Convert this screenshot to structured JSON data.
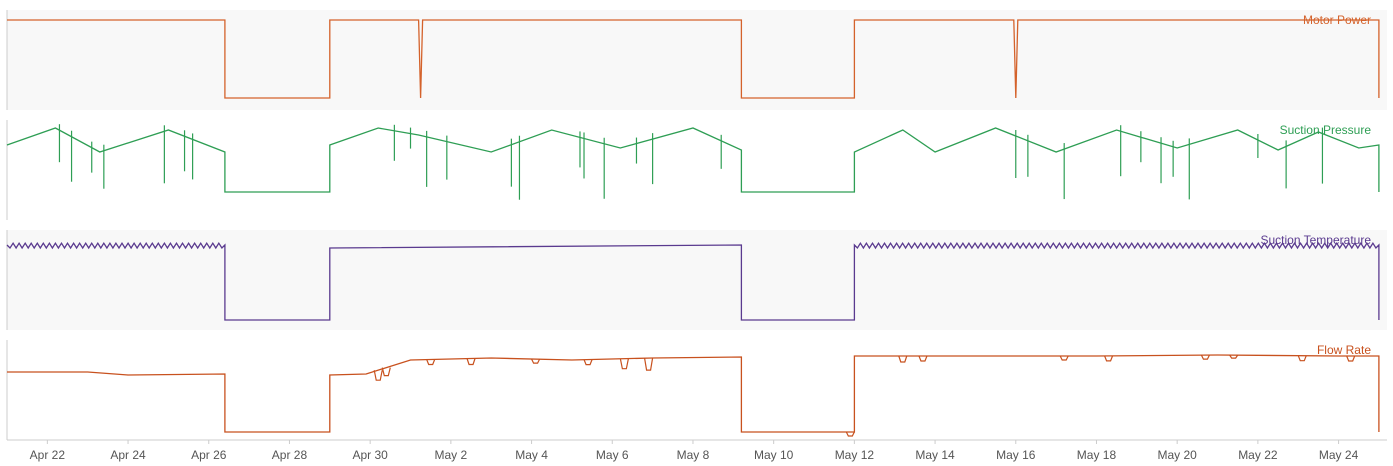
{
  "chart_data": {
    "type": "line",
    "layout_note_free": true,
    "x_axis": {
      "ticks": [
        "Apr 22",
        "Apr 24",
        "Apr 26",
        "Apr 28",
        "Apr 30",
        "May 2",
        "May 4",
        "May 6",
        "May 8",
        "May 10",
        "May 12",
        "May 14",
        "May 16",
        "May 18",
        "May 20",
        "May 22",
        "May 24"
      ],
      "range": [
        "2024-04-21",
        "2024-05-25"
      ]
    },
    "grid": false,
    "legend": "inline labels at top-right of each panel",
    "panels": [
      {
        "name": "Motor Power",
        "color": "#d4622b",
        "background": "#f8f8f8",
        "ylim": [
          0,
          1
        ],
        "x": [
          "Apr 21",
          "Apr 26.4",
          "Apr 26.4",
          "Apr 29",
          "Apr 29",
          "May 1.2",
          "May 1.25",
          "May 1.3",
          "May 9.2",
          "May 9.2",
          "May 12",
          "May 12",
          "May 15.95",
          "May 16",
          "May 16.05",
          "May 25",
          "May 25"
        ],
        "y": [
          0.9,
          0.9,
          0.12,
          0.12,
          0.9,
          0.9,
          0.12,
          0.9,
          0.9,
          0.12,
          0.12,
          0.9,
          0.9,
          0.12,
          0.9,
          0.9,
          0.12
        ]
      },
      {
        "name": "Suction Pressure",
        "color": "#2e9e54",
        "background": "#ffffff",
        "ylim": [
          0,
          1
        ],
        "x": [
          "Apr 21",
          "Apr 22.2",
          "Apr 23.3",
          "Apr 25",
          "Apr 26.4",
          "Apr 26.4",
          "Apr 29",
          "Apr 29",
          "Apr 30.2",
          "May 1.2",
          "May 3",
          "May 4.5",
          "May 6.2",
          "May 8",
          "May 9.2",
          "May 9.2",
          "May 12",
          "May 12",
          "May 13.2",
          "May 14",
          "May 15.5",
          "May 17",
          "May 18.5",
          "May 20",
          "May 21.5",
          "May 22.5",
          "May 23.5",
          "May 24.5",
          "May 25",
          "May 25"
        ],
        "y": [
          0.75,
          0.92,
          0.68,
          0.9,
          0.68,
          0.28,
          0.28,
          0.75,
          0.92,
          0.85,
          0.68,
          0.9,
          0.72,
          0.92,
          0.7,
          0.28,
          0.28,
          0.68,
          0.9,
          0.68,
          0.92,
          0.68,
          0.9,
          0.72,
          0.9,
          0.7,
          0.88,
          0.72,
          0.75,
          0.28
        ],
        "spikes_down": [
          "Apr 22.3",
          "Apr 22.6",
          "Apr 23.1",
          "Apr 23.4",
          "Apr 24.9",
          "Apr 25.4",
          "Apr 25.6",
          "Apr 30.6",
          "Apr 31",
          "May 1.4",
          "May 1.9",
          "May 3.5",
          "May 3.7",
          "May 5.2",
          "May 5.3",
          "May 5.8",
          "May 6.6",
          "May 7",
          "May 8.7",
          "May 16",
          "May 16.3",
          "May 17.2",
          "May 18.6",
          "May 19.1",
          "May 19.6",
          "May 19.9",
          "May 20.3",
          "May 22",
          "May 22.7",
          "May 23.6"
        ],
        "spike_depth": [
          0.32,
          0.45,
          0.25,
          0.38,
          0.52,
          0.35,
          0.4,
          0.3,
          0.15,
          0.5,
          0.38,
          0.42,
          0.58,
          0.3,
          0.4,
          0.55,
          0.2,
          0.45,
          0.28,
          0.42,
          0.36,
          0.5,
          0.45,
          0.25,
          0.4,
          0.3,
          0.55,
          0.18,
          0.42,
          0.5
        ]
      },
      {
        "name": "Suction Temperature",
        "color": "#5a3a8f",
        "background": "#f8f8f8",
        "ylim": [
          0,
          1
        ],
        "x": [
          "Apr 21",
          "Apr 26.4",
          "Apr 26.4",
          "Apr 29",
          "Apr 29",
          "May 9.2",
          "May 9.2",
          "May 12",
          "May 12",
          "May 25",
          "May 25"
        ],
        "y": [
          0.85,
          0.85,
          0.1,
          0.1,
          0.82,
          0.85,
          0.1,
          0.1,
          0.85,
          0.85,
          0.1
        ],
        "oscillation": 0.03
      },
      {
        "name": "Flow Rate",
        "color": "#c8511e",
        "background": "#ffffff",
        "ylim": [
          0,
          1
        ],
        "x": [
          "Apr 21",
          "Apr 23",
          "Apr 24",
          "Apr 26.4",
          "Apr 26.4",
          "Apr 29",
          "Apr 29",
          "Apr 29.9",
          "May 1",
          "May 3",
          "May 5",
          "May 7",
          "May 9.2",
          "May 9.2",
          "May 12",
          "May 12",
          "May 15",
          "May 18",
          "May 21",
          "May 24",
          "May 25",
          "May 25"
        ],
        "y": [
          0.68,
          0.68,
          0.65,
          0.66,
          0.08,
          0.08,
          0.65,
          0.66,
          0.8,
          0.82,
          0.8,
          0.82,
          0.83,
          0.08,
          0.08,
          0.84,
          0.84,
          0.84,
          0.85,
          0.84,
          0.84,
          0.08
        ],
        "dips": [
          "Apr 30.2",
          "Apr 30.4",
          "May 1.5",
          "May 2.5",
          "May 4.1",
          "May 5.4",
          "May 6.3",
          "May 6.9",
          "May 11.9",
          "May 13.2",
          "May 13.7",
          "May 17.2",
          "May 18.3",
          "May 20.7",
          "May 21.4",
          "May 23.1",
          "May 24.3"
        ],
        "dip_depth": [
          0.1,
          0.08,
          0.05,
          0.06,
          0.04,
          0.05,
          0.1,
          0.12,
          0.04,
          0.06,
          0.05,
          0.04,
          0.05,
          0.04,
          0.03,
          0.05,
          0.05
        ]
      }
    ]
  }
}
